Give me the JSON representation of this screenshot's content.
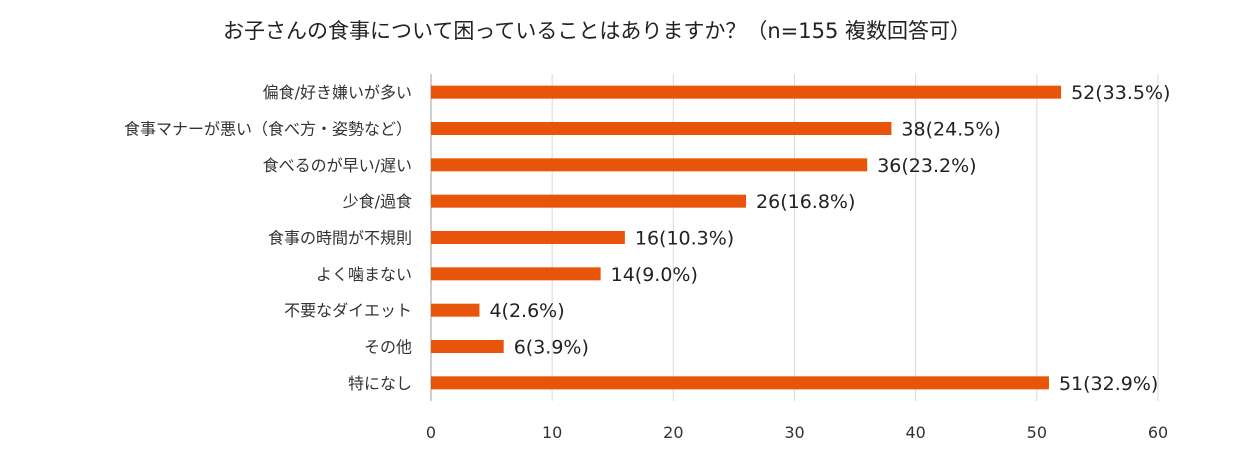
{
  "chart_data": {
    "type": "bar",
    "orientation": "horizontal",
    "title": "お子さんの食事について困っていることはありますか？（n=155  複数回答可）",
    "categories": [
      "偏食/好き嫌いが多い",
      "食事マナーが悪い（食べ方・姿勢など）",
      "食べるのが早い/遅い",
      "少食/過食",
      "食事の時間が不規則",
      "よく噛まない",
      "不要なダイエット",
      "その他",
      "特になし"
    ],
    "values": [
      52,
      38,
      36,
      26,
      16,
      14,
      4,
      6,
      51
    ],
    "data_labels": [
      "52(33.5%)",
      "38(24.5%)",
      "36(23.2%)",
      "26(16.8%)",
      "16(10.3%)",
      "14(9.0%)",
      "4(2.6%)",
      "6(3.9%)",
      "51(32.9%)"
    ],
    "xlim": [
      0,
      60
    ],
    "xticks": [
      "0",
      "10",
      "20",
      "30",
      "40",
      "50",
      "60"
    ],
    "xlabel": "",
    "ylabel": "",
    "grid": true,
    "bar_color": "#E8540A"
  }
}
